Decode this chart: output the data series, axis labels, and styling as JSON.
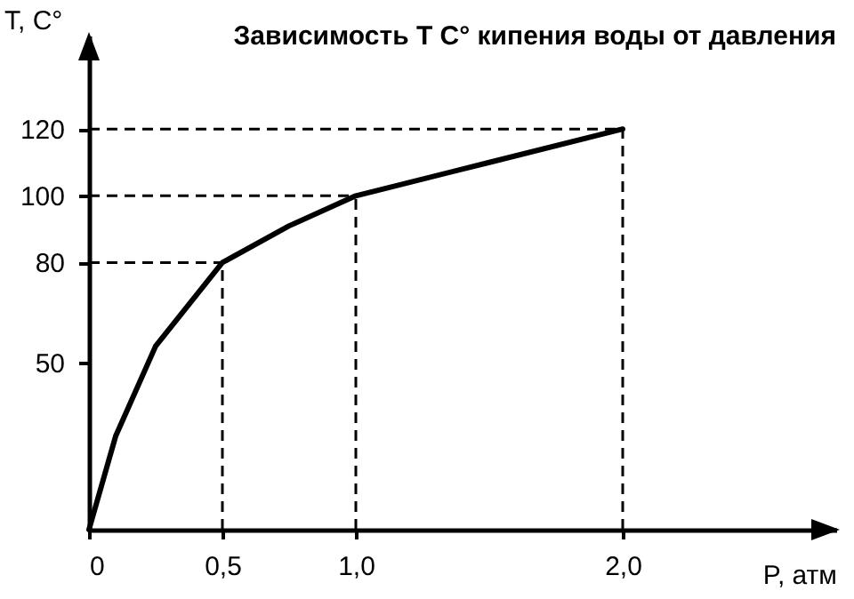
{
  "chart_data": {
    "type": "line",
    "title": "Зависимость T C° кипения воды от давления",
    "xlabel": "P, атм",
    "ylabel": "T, C°",
    "x": [
      0,
      0.1,
      0.25,
      0.5,
      0.75,
      1,
      1.5,
      2
    ],
    "series": [
      {
        "color": "#000000",
        "values": [
          0,
          28,
          55,
          80,
          91,
          100,
          110,
          120
        ]
      }
    ],
    "xlim": [
      0,
      2.8
    ],
    "ylim": [
      0,
      148
    ],
    "xticks": [
      0,
      {
        "value": 0.5,
        "label": "0,5"
      },
      {
        "value": 1,
        "label": "1,0"
      },
      {
        "value": 2,
        "label": "2,0"
      }
    ],
    "yticks": [
      50,
      80,
      100,
      120
    ],
    "ref_lines": [
      {
        "axis": "x",
        "value": 0.5,
        "line_style": "dashed"
      },
      {
        "axis": "x",
        "value": 1,
        "line_style": "dashed"
      },
      {
        "axis": "x",
        "value": 2,
        "line_style": "dashed"
      },
      {
        "axis": "y",
        "value": 80,
        "line_style": "dashed"
      },
      {
        "axis": "y",
        "value": 100,
        "line_style": "dashed"
      },
      {
        "axis": "y",
        "value": 120,
        "line_style": "dashed"
      }
    ],
    "grid": false,
    "marker": "none",
    "line_style": "solid"
  }
}
